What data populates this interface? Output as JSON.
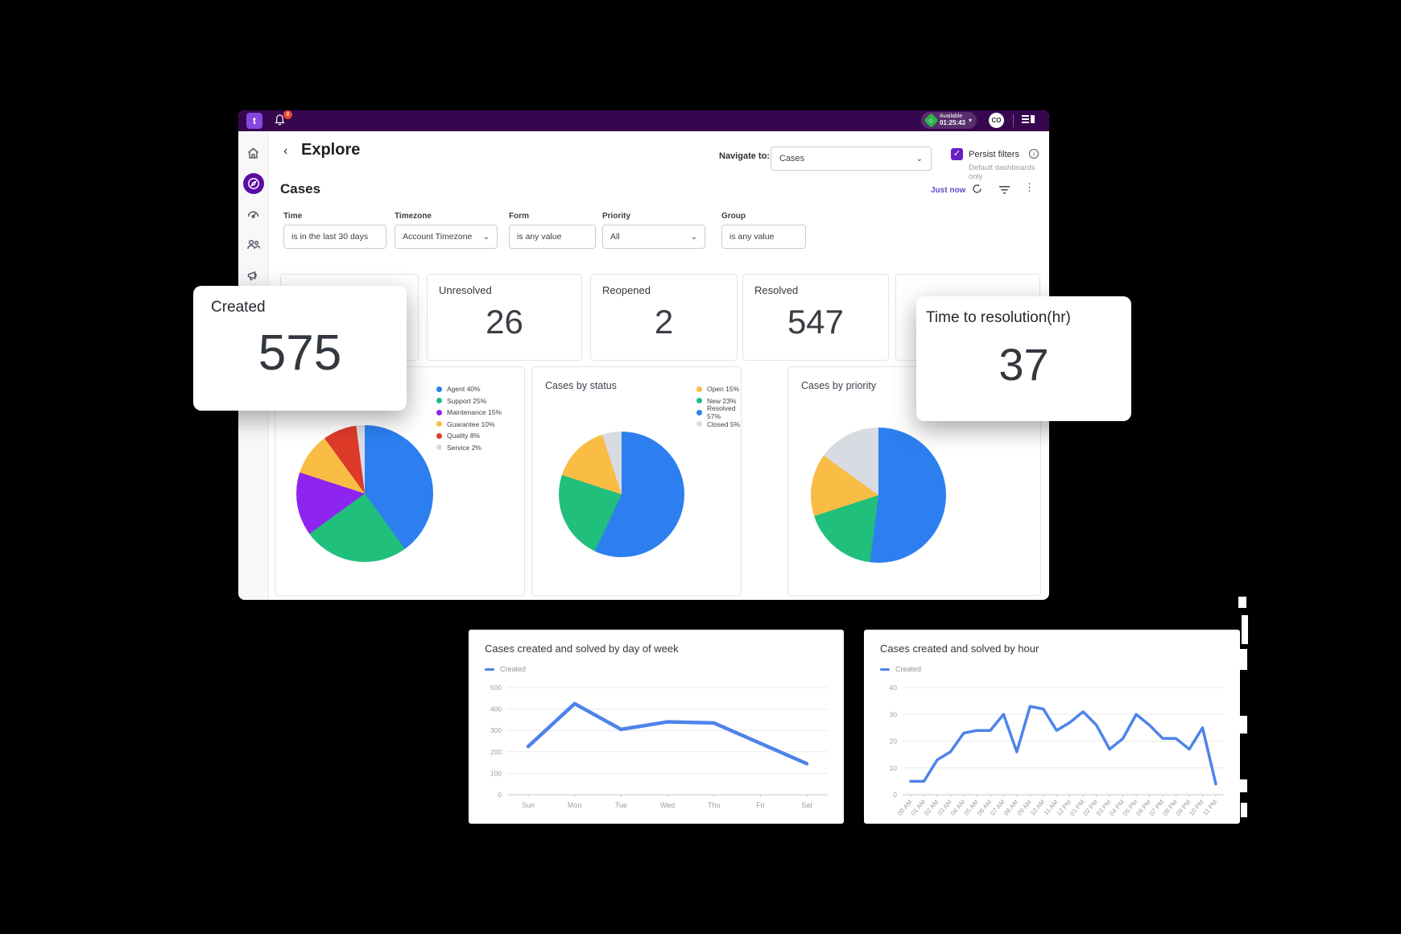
{
  "topbar": {
    "logo_glyph": "t",
    "notification_count": "8",
    "status_label": "Available",
    "status_timer": "01:25:43",
    "avatar_initials": "CO"
  },
  "sidebar": {
    "items": [
      {
        "name": "home"
      },
      {
        "name": "explore",
        "active": true
      },
      {
        "name": "dashboards"
      },
      {
        "name": "team"
      },
      {
        "name": "announcements"
      },
      {
        "name": "achievements"
      }
    ]
  },
  "header": {
    "back_glyph": "‹",
    "title": "Explore",
    "navigate_label": "Navigate to:",
    "navigate_value": "Cases",
    "persist_label": "Persist filters",
    "persist_note": "Default dashboards only",
    "checkbox_checked": "✓",
    "info_glyph": "i"
  },
  "cases": {
    "title": "Cases",
    "refreshed_label": "Just now",
    "filters": [
      {
        "label": "Time",
        "value": "is in the last 30 days",
        "dropdown": false
      },
      {
        "label": "Timezone",
        "value": "Account Timezone",
        "dropdown": true
      },
      {
        "label": "Form",
        "value": "is any value",
        "dropdown": false
      },
      {
        "label": "Priority",
        "value": "All",
        "dropdown": true
      },
      {
        "label": "Group",
        "value": "is any value",
        "dropdown": false
      }
    ]
  },
  "stats": {
    "created": {
      "label": "Created",
      "value": "575"
    },
    "unresolved": {
      "label": "Unresolved",
      "value": "26"
    },
    "reopened": {
      "label": "Reopened",
      "value": "2"
    },
    "resolved": {
      "label": "Resolved",
      "value": "547"
    },
    "time_to_resolution": {
      "label": "Time to resolution(hr)",
      "value": "37"
    }
  },
  "colors": {
    "accent_purple": "#6920c2",
    "topbar_purple": "#36074f",
    "available_green": "#2bb24c",
    "line_blue": "#4e83ea"
  },
  "chart_data": [
    {
      "type": "pie",
      "title": "",
      "legend_position": "top-right",
      "labels": [
        "Agent",
        "Support",
        "Maintenance",
        "Guarantee",
        "Quality",
        "Service"
      ],
      "values": [
        40,
        25,
        15,
        10,
        8,
        2
      ],
      "legend": [
        "Agent 40%",
        "Support 25%",
        "Maintenance 15%",
        "Guarantee 10%",
        "Quality 8%",
        "Service 2%"
      ],
      "colors": [
        "#2d7ff0",
        "#21bf7c",
        "#8e24f0",
        "#f9bd45",
        "#dd3a2a",
        "#d8dbe2"
      ]
    },
    {
      "type": "pie",
      "title": "Cases by status",
      "legend_position": "top-right",
      "labels": [
        "Resolved",
        "New",
        "Open",
        "Closed"
      ],
      "values": [
        57,
        23,
        15,
        5
      ],
      "legend": [
        "Open 15%",
        "New 23%",
        "Resolved 57%",
        "Closed 5%"
      ],
      "legend_colors": [
        "#f9bd45",
        "#21bf7c",
        "#2d7ff0",
        "#d8dbe2"
      ],
      "colors": [
        "#2d7ff0",
        "#21bf7c",
        "#f9bd45",
        "#d8dbe2"
      ]
    },
    {
      "type": "pie",
      "title": "Cases by priority",
      "legend_visible": false,
      "values": [
        52,
        18,
        15,
        15
      ],
      "colors": [
        "#2d7ff0",
        "#21bf7c",
        "#f9bd45",
        "#d8dbe2"
      ]
    },
    {
      "type": "line",
      "title": "Cases created and solved by day of week",
      "legend": [
        "Created"
      ],
      "line_color": "#4e83ea",
      "categories": [
        "Sun",
        "Mon",
        "Tue",
        "Wed",
        "Thu",
        "Fri",
        "Sat"
      ],
      "values": [
        225,
        425,
        305,
        340,
        335,
        240,
        145
      ],
      "ylim": [
        0,
        500
      ],
      "yticks": [
        0,
        100,
        200,
        300,
        400,
        500
      ],
      "rotate_x_labels": false
    },
    {
      "type": "line",
      "title": "Cases created and solved by hour",
      "legend": [
        "Created"
      ],
      "line_color": "#4e83ea",
      "categories": [
        "00 AM",
        "01 AM",
        "02 AM",
        "03 AM",
        "04 AM",
        "05 AM",
        "06 AM",
        "07 AM",
        "08 AM",
        "09 AM",
        "10 AM",
        "11 AM",
        "12 PM",
        "01 PM",
        "02 PM",
        "03 PM",
        "04 PM",
        "05 PM",
        "06 PM",
        "07 PM",
        "08 PM",
        "09 PM",
        "10 PM",
        "11 PM"
      ],
      "values": [
        5,
        5,
        13,
        16,
        23,
        24,
        24,
        30,
        16,
        33,
        32,
        24,
        27,
        31,
        26,
        17,
        21,
        30,
        26,
        21,
        21,
        17,
        25,
        4
      ],
      "ylim": [
        0,
        40
      ],
      "yticks": [
        0,
        10,
        20,
        30,
        40
      ],
      "rotate_x_labels": true
    }
  ]
}
